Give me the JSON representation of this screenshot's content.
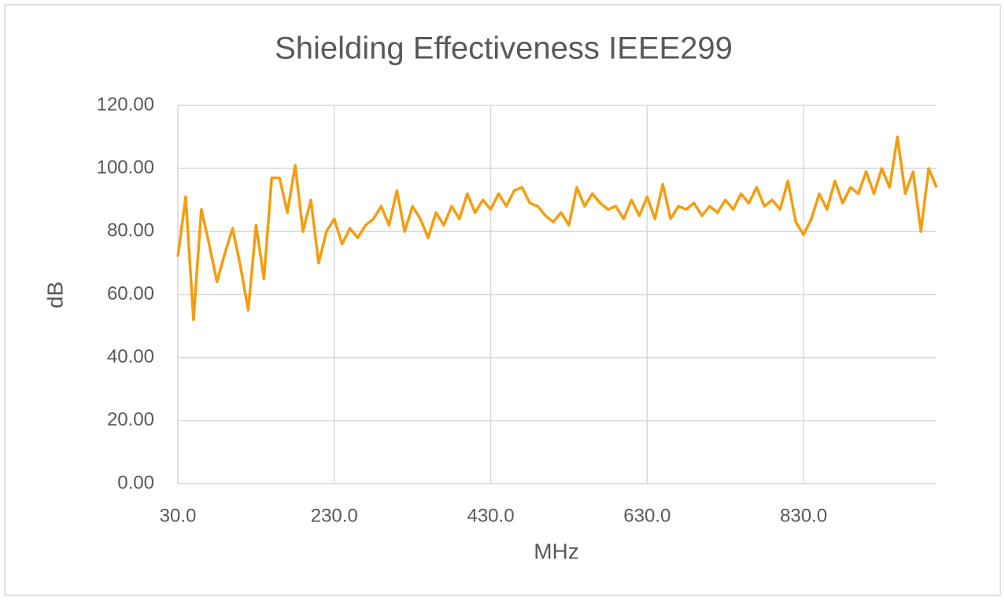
{
  "chart_data": {
    "type": "line",
    "title": "Shielding Effectiveness IEEE299",
    "x_label": "MHz",
    "y_label": "dB",
    "x": [
      30,
      40,
      50,
      60,
      70,
      80,
      90,
      100,
      110,
      120,
      130,
      140,
      150,
      160,
      170,
      180,
      190,
      200,
      210,
      220,
      230,
      240,
      250,
      260,
      270,
      280,
      290,
      300,
      310,
      320,
      330,
      340,
      350,
      360,
      370,
      380,
      390,
      400,
      410,
      420,
      430,
      440,
      450,
      460,
      470,
      480,
      490,
      500,
      510,
      520,
      530,
      540,
      550,
      560,
      570,
      580,
      590,
      600,
      610,
      620,
      630,
      640,
      650,
      660,
      670,
      680,
      690,
      700,
      710,
      720,
      730,
      740,
      750,
      760,
      770,
      780,
      790,
      800,
      810,
      820,
      830,
      840,
      850,
      860,
      870,
      880,
      890,
      900,
      910,
      920,
      930,
      940,
      950,
      960,
      970,
      980,
      990,
      1000
    ],
    "series": [
      {
        "name": "dB",
        "color": "#f59d0e",
        "values": [
          72,
          91,
          52,
          87,
          76,
          64,
          73,
          81,
          69,
          55,
          82,
          65,
          97,
          97,
          86,
          101,
          80,
          90,
          70,
          80,
          84,
          76,
          81,
          78,
          82,
          84,
          88,
          82,
          93,
          80,
          88,
          84,
          78,
          86,
          82,
          88,
          84,
          92,
          86,
          90,
          87,
          92,
          88,
          93,
          94,
          89,
          88,
          85,
          83,
          86,
          82,
          94,
          88,
          92,
          89,
          87,
          88,
          84,
          90,
          85,
          91,
          84,
          95,
          84,
          88,
          87,
          89,
          85,
          88,
          86,
          90,
          87,
          92,
          89,
          94,
          88,
          90,
          87,
          96,
          83,
          79,
          84,
          92,
          87,
          96,
          89,
          94,
          92,
          99,
          92,
          100,
          94,
          110,
          92,
          99,
          80,
          100,
          94
        ]
      }
    ],
    "xlim": [
      30,
      1000
    ],
    "ylim": [
      0,
      120
    ],
    "xticks": [
      {
        "value": 30,
        "label": "30.0"
      },
      {
        "value": 230,
        "label": "230.0"
      },
      {
        "value": 430,
        "label": "430.0"
      },
      {
        "value": 630,
        "label": "630.0"
      },
      {
        "value": 830,
        "label": "830.0"
      }
    ],
    "yticks": [
      {
        "value": 0,
        "label": "0.00"
      },
      {
        "value": 20,
        "label": "20.00"
      },
      {
        "value": 40,
        "label": "40.00"
      },
      {
        "value": 60,
        "label": "60.00"
      },
      {
        "value": 80,
        "label": "80.00"
      },
      {
        "value": 100,
        "label": "100.00"
      },
      {
        "value": 120,
        "label": "120.00"
      }
    ],
    "grid": true
  }
}
